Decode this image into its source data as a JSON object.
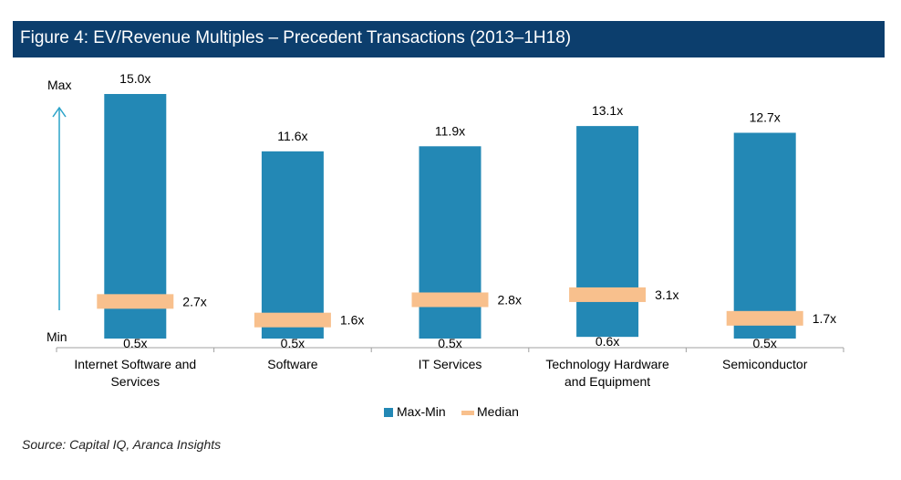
{
  "header": {
    "title": "Figure 4: EV/Revenue Multiples – Precedent Transactions (2013–1H18)"
  },
  "colors": {
    "header_bg": "#0c3e6d",
    "bar": "#2388b5",
    "median": "#f8c08d",
    "axis": "#a0a0a0",
    "arrow": "#2ba3c9"
  },
  "chart_data": {
    "type": "bar",
    "title": "Figure 4: EV/Revenue Multiples – Precedent Transactions (2013–1H18)",
    "categories": [
      "Internet Software and Services",
      "Software",
      "IT Services",
      "Technology Hardware and Equipment",
      "Semiconductor"
    ],
    "category_lines": [
      [
        "Internet Software and",
        "Services"
      ],
      [
        "Software"
      ],
      [
        "IT Services"
      ],
      [
        "Technology Hardware",
        "and Equipment"
      ],
      [
        "Semiconductor"
      ]
    ],
    "series": [
      {
        "name": "Max-Min",
        "max": [
          15.0,
          11.6,
          11.9,
          13.1,
          12.7
        ],
        "min": [
          0.5,
          0.5,
          0.5,
          0.6,
          0.5
        ],
        "max_labels": [
          "15.0x",
          "11.6x",
          "11.9x",
          "13.1x",
          "12.7x"
        ],
        "min_labels": [
          "0.5x",
          "0.5x",
          "0.5x",
          "0.6x",
          "0.5x"
        ]
      },
      {
        "name": "Median",
        "values": [
          2.7,
          1.6,
          2.8,
          3.1,
          1.7
        ],
        "labels": [
          "2.7x",
          "1.6x",
          "2.8x",
          "3.1x",
          "1.7x"
        ]
      }
    ],
    "y_axis_labels": {
      "max": "Max",
      "min": "Min"
    },
    "ylim": [
      0,
      15.0
    ],
    "legend": [
      "Max-Min",
      "Median"
    ],
    "legend_position": "bottom"
  },
  "source": "Source: Capital IQ, Aranca Insights"
}
